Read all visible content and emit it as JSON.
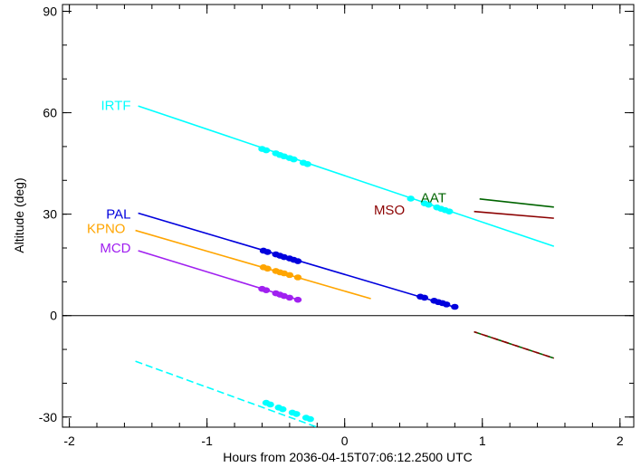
{
  "chart_data": {
    "type": "line",
    "title": "",
    "xlabel": "Hours from 2036-04-15T07:06:12.2500 UTC",
    "ylabel": "Altitude (deg)",
    "xlim": [
      -2.05,
      2.1
    ],
    "ylim": [
      -33,
      92
    ],
    "x_ticks": [
      -2,
      -1,
      0,
      1,
      2
    ],
    "y_ticks": [
      -30,
      0,
      30,
      60,
      90
    ],
    "x_minor_step": 0.2,
    "y_minor_step": 10,
    "grid": false,
    "zero_line": 0,
    "series": [
      {
        "name": "IRTF",
        "color": "#00ffff",
        "label_at": [
          -1.54,
          62.2
        ],
        "label_align": "end",
        "segments": [
          {
            "x": [
              -1.5,
              1.52
            ],
            "y": [
              62.0,
              20.5
            ],
            "dash": false
          },
          {
            "x": [
              -1.52,
              -0.2
            ],
            "y": [
              -13.5,
              -33.0
            ],
            "dash": true
          }
        ],
        "markers": [
          {
            "x": [
              -0.6,
              -0.57,
              -0.5,
              -0.47,
              -0.44,
              -0.4,
              -0.37,
              -0.3,
              -0.27
            ],
            "y": [
              49.3,
              48.9,
              48.0,
              47.5,
              47.1,
              46.6,
              46.2,
              45.2,
              44.8
            ]
          },
          {
            "x": [
              0.48,
              0.58,
              0.61,
              0.67,
              0.7,
              0.73,
              0.76
            ],
            "y": [
              34.6,
              33.2,
              32.8,
              32.0,
              31.6,
              31.2,
              30.8
            ]
          },
          {
            "x": [
              -0.57,
              -0.54,
              -0.48,
              -0.45,
              -0.38,
              -0.35,
              -0.28,
              -0.25
            ],
            "y": [
              -25.8,
              -26.3,
              -27.2,
              -27.7,
              -28.7,
              -29.1,
              -30.2,
              -30.6
            ]
          }
        ]
      },
      {
        "name": "PAL",
        "color": "#0000dd",
        "label_at": [
          -1.54,
          30.0
        ],
        "label_align": "end",
        "segments": [
          {
            "x": [
              -1.5,
              0.8
            ],
            "y": [
              30.3,
              2.5
            ],
            "dash": false
          }
        ],
        "markers": [
          {
            "x": [
              -0.59,
              -0.56,
              -0.5,
              -0.47,
              -0.44,
              -0.4,
              -0.37,
              -0.34
            ],
            "y": [
              19.2,
              18.8,
              18.1,
              17.7,
              17.3,
              16.9,
              16.5,
              16.1
            ]
          },
          {
            "x": [
              0.55,
              0.58,
              0.65,
              0.68,
              0.71,
              0.74,
              0.8
            ],
            "y": [
              5.6,
              5.3,
              4.4,
              4.0,
              3.7,
              3.3,
              2.6
            ]
          }
        ]
      },
      {
        "name": "KPNO",
        "color": "#ffa500",
        "label_at": [
          -1.58,
          25.8
        ],
        "label_align": "end",
        "segments": [
          {
            "x": [
              -1.52,
              0.19
            ],
            "y": [
              25.2,
              5.0
            ],
            "dash": false
          }
        ],
        "markers": [
          {
            "x": [
              -0.59,
              -0.56,
              -0.5,
              -0.47,
              -0.44,
              -0.4,
              -0.34
            ],
            "y": [
              14.3,
              13.9,
              13.2,
              12.8,
              12.5,
              12.0,
              11.3
            ]
          }
        ]
      },
      {
        "name": "MCD",
        "color": "#a020f0",
        "label_at": [
          -1.54,
          20.0
        ],
        "label_align": "end",
        "segments": [
          {
            "x": [
              -1.5,
              -0.34
            ],
            "y": [
              19.2,
              4.7
            ],
            "dash": false
          }
        ],
        "markers": [
          {
            "x": [
              -0.6,
              -0.57,
              -0.5,
              -0.47,
              -0.44,
              -0.4,
              -0.34
            ],
            "y": [
              7.9,
              7.5,
              6.6,
              6.2,
              5.8,
              5.3,
              4.7
            ]
          }
        ]
      },
      {
        "name": "AAT",
        "color": "#006400",
        "label_at": [
          0.54,
          34.8
        ],
        "label_align": "start",
        "segments": [
          {
            "x": [
              0.98,
              1.52
            ],
            "y": [
              34.5,
              32.1
            ],
            "dash": false
          },
          {
            "x": [
              0.94,
              1.52
            ],
            "y": [
              -4.8,
              -12.6
            ],
            "dash": true
          }
        ],
        "markers": []
      },
      {
        "name": "MSO",
        "color": "#8b0000",
        "label_at": [
          0.45,
          31.2
        ],
        "label_align": "end",
        "segments": [
          {
            "x": [
              0.94,
              1.52
            ],
            "y": [
              30.8,
              28.8
            ],
            "dash": false
          },
          {
            "x": [
              0.94,
              1.52
            ],
            "y": [
              -4.8,
              -12.6
            ],
            "dash": true,
            "offset": 4
          }
        ],
        "markers": []
      }
    ]
  }
}
